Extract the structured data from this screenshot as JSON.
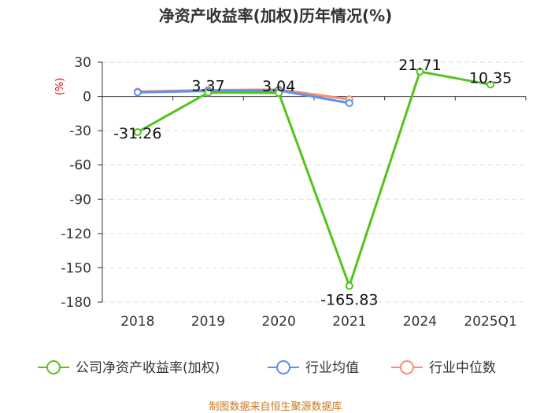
{
  "chart_data": {
    "type": "line",
    "title": "净资产收益率(加权)历年情况(%)",
    "ylabel": "(%)",
    "xlabel": "",
    "categories": [
      "2018",
      "2019",
      "2020",
      "2021",
      "2024",
      "2025Q1"
    ],
    "yticks": [
      30,
      0,
      -30,
      -60,
      -90,
      -120,
      -150,
      -180
    ],
    "ylim": [
      -180,
      30
    ],
    "series": [
      {
        "name": "公司净资产收益率(加权)",
        "color": "#52c41a",
        "values": [
          -31.26,
          3.37,
          3.04,
          -165.83,
          21.71,
          10.35
        ],
        "labels": [
          "-31.26",
          "3.37",
          "3.04",
          "-165.83",
          "21.71",
          "10.35"
        ]
      },
      {
        "name": "行业均值",
        "color": "#5b8ff9",
        "values": [
          3.6,
          4.8,
          5.3,
          -5.8,
          null,
          null
        ]
      },
      {
        "name": "行业中位数",
        "color": "#f4916b",
        "values": [
          4.2,
          5.6,
          6.0,
          -2.5,
          null,
          null
        ]
      }
    ],
    "legend_position": "bottom",
    "source": "制图数据来自恒生聚源数据库"
  }
}
